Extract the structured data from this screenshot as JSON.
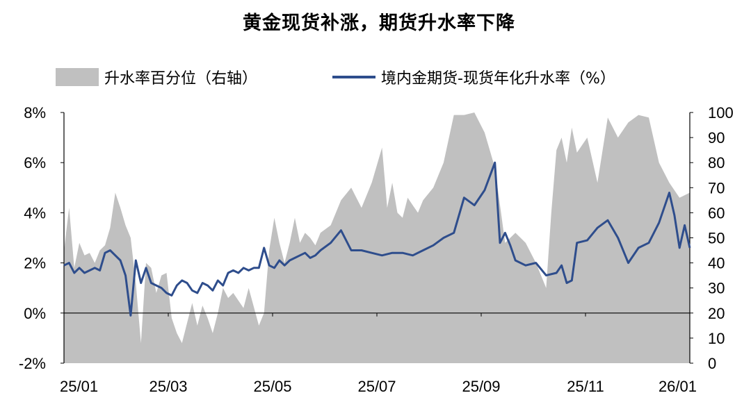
{
  "chart_data": {
    "type": "area",
    "title": "黄金现货补涨，期货升水率下降",
    "legend": [
      {
        "label": "升水率百分位（右轴）",
        "color": "#c0c0c0",
        "kind": "area"
      },
      {
        "label": "境内金期货-现货年化升水率（%）",
        "color": "#2e4d8c",
        "kind": "line"
      }
    ],
    "legend_position": "top",
    "y_left": {
      "ticks": [
        "8%",
        "6%",
        "4%",
        "2%",
        "0%",
        "-2%"
      ],
      "range": [
        -2,
        8
      ]
    },
    "y_right": {
      "ticks": [
        "100",
        "90",
        "80",
        "70",
        "60",
        "50",
        "40",
        "30",
        "20",
        "10",
        "0"
      ],
      "range": [
        0,
        100
      ]
    },
    "x_axis": {
      "tick_labels": [
        "25/01",
        "25/03",
        "25/05",
        "25/07",
        "25/09",
        "25/11",
        "26/01"
      ],
      "range": [
        0,
        12.2
      ]
    },
    "series": [
      {
        "name": "升水率百分位（右轴）",
        "axis": "right",
        "x": [
          0,
          0.1,
          0.2,
          0.3,
          0.4,
          0.5,
          0.6,
          0.7,
          0.8,
          0.9,
          1.0,
          1.1,
          1.2,
          1.3,
          1.4,
          1.5,
          1.6,
          1.7,
          1.8,
          1.9,
          2.0,
          2.1,
          2.2,
          2.3,
          2.4,
          2.5,
          2.6,
          2.7,
          2.8,
          2.9,
          3.0,
          3.1,
          3.2,
          3.3,
          3.4,
          3.5,
          3.6,
          3.8,
          3.9,
          4.0,
          4.1,
          4.2,
          4.3,
          4.4,
          4.5,
          4.6,
          4.7,
          4.8,
          4.9,
          5.0,
          5.2,
          5.4,
          5.6,
          5.8,
          6.0,
          6.2,
          6.3,
          6.4,
          6.5,
          6.6,
          6.7,
          6.8,
          6.9,
          7.0,
          7.2,
          7.4,
          7.6,
          7.8,
          8.0,
          8.2,
          8.4,
          8.6,
          8.8,
          8.9,
          9.0,
          9.2,
          9.4,
          9.5,
          9.6,
          9.7,
          9.8,
          9.9,
          10.0,
          10.2,
          10.4,
          10.6,
          10.8,
          11.0,
          11.2,
          11.4,
          11.6,
          11.8,
          12.0,
          12.2
        ],
        "values": [
          45,
          62,
          38,
          48,
          43,
          44,
          40,
          45,
          47,
          54,
          68,
          62,
          55,
          50,
          32,
          8,
          40,
          38,
          28,
          35,
          36,
          18,
          12,
          8,
          16,
          24,
          15,
          23,
          18,
          12,
          20,
          30,
          26,
          28,
          25,
          22,
          30,
          15,
          20,
          45,
          58,
          48,
          40,
          48,
          58,
          48,
          52,
          50,
          47,
          52,
          55,
          65,
          70,
          62,
          72,
          86,
          62,
          72,
          60,
          58,
          66,
          63,
          60,
          65,
          70,
          80,
          99,
          99,
          100,
          92,
          78,
          48,
          52,
          50,
          48,
          40,
          30,
          60,
          85,
          90,
          80,
          94,
          84,
          90,
          72,
          98,
          90,
          96,
          99,
          98,
          80,
          72,
          66,
          68
        ]
      },
      {
        "name": "境内金期货-现货年化升水率（%）",
        "axis": "left",
        "x": [
          0,
          0.1,
          0.2,
          0.3,
          0.4,
          0.5,
          0.6,
          0.7,
          0.8,
          0.9,
          1.0,
          1.1,
          1.2,
          1.3,
          1.4,
          1.5,
          1.6,
          1.7,
          1.8,
          1.9,
          2.0,
          2.1,
          2.2,
          2.3,
          2.4,
          2.5,
          2.6,
          2.7,
          2.8,
          2.9,
          3.0,
          3.1,
          3.2,
          3.3,
          3.4,
          3.5,
          3.6,
          3.7,
          3.8,
          3.9,
          4.0,
          4.1,
          4.2,
          4.3,
          4.4,
          4.5,
          4.6,
          4.7,
          4.8,
          4.9,
          5.0,
          5.2,
          5.4,
          5.6,
          5.8,
          6.0,
          6.2,
          6.4,
          6.6,
          6.8,
          7.0,
          7.2,
          7.4,
          7.6,
          7.8,
          8.0,
          8.2,
          8.4,
          8.5,
          8.6,
          8.7,
          8.8,
          9.0,
          9.2,
          9.4,
          9.6,
          9.7,
          9.8,
          9.9,
          10.0,
          10.2,
          10.4,
          10.6,
          10.8,
          11.0,
          11.2,
          11.4,
          11.6,
          11.8,
          11.9,
          12.0,
          12.1,
          12.2
        ],
        "values": [
          1.9,
          2.0,
          1.6,
          1.8,
          1.6,
          1.7,
          1.8,
          1.7,
          2.4,
          2.5,
          2.3,
          2.1,
          1.5,
          -0.1,
          2.1,
          1.2,
          1.8,
          1.2,
          1.1,
          1.0,
          0.8,
          0.7,
          1.1,
          1.3,
          1.2,
          0.9,
          0.8,
          1.2,
          1.1,
          0.9,
          1.3,
          1.1,
          1.6,
          1.7,
          1.6,
          1.8,
          1.7,
          1.8,
          1.8,
          2.6,
          1.9,
          1.8,
          2.1,
          1.9,
          2.1,
          2.2,
          2.3,
          2.4,
          2.2,
          2.3,
          2.5,
          2.8,
          3.3,
          2.5,
          2.5,
          2.4,
          2.3,
          2.4,
          2.4,
          2.3,
          2.5,
          2.7,
          3.0,
          3.2,
          4.6,
          4.3,
          4.9,
          6.0,
          2.8,
          3.2,
          2.7,
          2.1,
          1.9,
          2.0,
          1.5,
          1.6,
          1.9,
          1.2,
          1.3,
          2.8,
          2.9,
          3.4,
          3.7,
          3.0,
          2.0,
          2.6,
          2.8,
          3.6,
          4.8,
          3.9,
          2.6,
          3.5,
          2.6
        ]
      }
    ]
  }
}
